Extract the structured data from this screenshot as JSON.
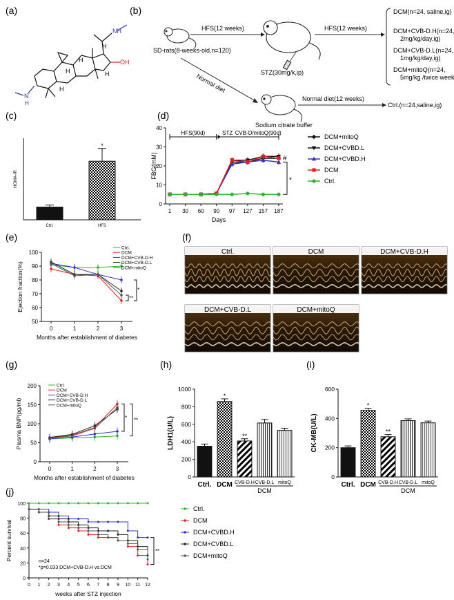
{
  "panel_labels": {
    "a": "(a)",
    "b": "(b)",
    "c": "(c)",
    "d": "(d)",
    "e": "(e)",
    "f": "(f)",
    "g": "(g)",
    "h": "(h)",
    "i": "(i)",
    "j": "(j)"
  },
  "panel_a": {
    "atoms": {
      "nh_top": "NH",
      "oh": "OH",
      "n_left": "N",
      "h_left": "H",
      "h1": "H",
      "h2": "H",
      "h3": "H",
      "h4": "H",
      "h5": "H"
    }
  },
  "panel_b": {
    "rat_label": "SD-rats(8-weeks-old,n=120)",
    "hfs1": "HFS(12 weeks)",
    "stz": "STZ(30mg/k,ip)",
    "hfs2": "HFS(12 weeks)",
    "normal_diet": "Normal diet",
    "normal_diet2": "Normal diet(12 weeks)",
    "citrate": "Sodium citrate buffer",
    "ctrl": "Ctrl.(n=24,saline,ig)",
    "groups": [
      {
        "l1": "DCM(n=24, saline,ig)",
        "l2": ""
      },
      {
        "l1": "DCM+CVB-D.H(n=24,",
        "l2": "2mg/kg/day,ig)"
      },
      {
        "l1": "DCM+CVB-D.L(n=24,",
        "l2": "1mg/kg/day,ig)"
      },
      {
        "l1": "DCM+mitoQ(n=24,",
        "l2": "5mg/kg /twice weekly, ip)"
      }
    ]
  },
  "panel_f": {
    "labels": [
      "Ctrl.",
      "DCM",
      "DCM+CVB-D.H",
      "DCM+CVB-D.L",
      "DCM+mitoQ"
    ]
  },
  "colors": {
    "ctrl": "#2db52d",
    "dcm": "#e02020",
    "cvbh": "#3333cc",
    "cvbl": "#222222",
    "mitoq": "#555555"
  },
  "chart_data": [
    {
      "id": "c",
      "type": "bar",
      "categories": [
        "Ctrl.",
        "HFS"
      ],
      "values": [
        0.25,
        1.15
      ],
      "errors": [
        0.04,
        0.25
      ],
      "ylabel": "HOMA-IR",
      "ylim": [
        0,
        1.6
      ],
      "sig": "*"
    },
    {
      "id": "d",
      "type": "line",
      "xlabel": "Days",
      "ylabel": "FBG(mM)",
      "x": [
        1,
        30,
        60,
        90,
        97,
        127,
        157,
        187
      ],
      "xticks": [
        "1",
        "30",
        "60",
        "90",
        "97",
        "127",
        "157",
        "187"
      ],
      "ylim": [
        0,
        40
      ],
      "yticks": [
        0,
        10,
        20,
        30,
        40
      ],
      "bracket1": "HFS(90d)",
      "bracket2": "STZ",
      "bracket3": "CVB-D/mitoQ(90d)",
      "sig_hash": "#",
      "sig_star": "*",
      "series": [
        {
          "name": "DCM+mitoQ",
          "marker": "diamond",
          "color": "#111111",
          "values": [
            5,
            5,
            5,
            5.5,
            22,
            22,
            24,
            24
          ]
        },
        {
          "name": "DCM+CVBD.L",
          "marker": "tri-down",
          "color": "#111111",
          "values": [
            5,
            5,
            5,
            5.5,
            23,
            23,
            25,
            25
          ]
        },
        {
          "name": "DCM+CVBD.H",
          "marker": "tri-up",
          "color": "#3333cc",
          "values": [
            5,
            5,
            5,
            5.5,
            21,
            22,
            23,
            22
          ]
        },
        {
          "name": "DCM",
          "marker": "square",
          "color": "#e02020",
          "values": [
            5,
            5,
            5,
            5.5,
            23,
            22,
            25,
            24
          ]
        },
        {
          "name": "Ctrl.",
          "marker": "circle",
          "color": "#2db52d",
          "values": [
            5,
            5,
            5,
            5,
            5,
            5.5,
            5,
            5
          ]
        }
      ]
    },
    {
      "id": "e",
      "type": "line",
      "xlabel": "Months after establishment of diabetes",
      "ylabel": "Ejection fraction(%)",
      "x": [
        0,
        1,
        2,
        3
      ],
      "xticks": [
        "0",
        "1",
        "2",
        "3"
      ],
      "ylim": [
        50,
        100
      ],
      "yticks": [
        50,
        60,
        70,
        80,
        90,
        100
      ],
      "sig1": "*",
      "sig2": "**",
      "series": [
        {
          "name": "Ctrl.",
          "color": "#2db52d",
          "values": [
            91,
            89,
            89,
            90
          ]
        },
        {
          "name": "DCM",
          "color": "#e02020",
          "values": [
            88,
            84,
            83,
            65
          ]
        },
        {
          "name": "DCM+CVB-D.H",
          "color": "#3333cc",
          "values": [
            92,
            89,
            84,
            80
          ]
        },
        {
          "name": "DCM+CVB-D.L",
          "color": "#222222",
          "values": [
            93,
            84,
            84,
            72
          ]
        },
        {
          "name": "DCM+mitoQ",
          "color": "#555555",
          "values": [
            92,
            83,
            84,
            69
          ]
        }
      ]
    },
    {
      "id": "g",
      "type": "line",
      "xlabel": "Months after establishment of diabetes",
      "ylabel": "Plasma BNP(pg/ml)",
      "x": [
        0,
        1,
        2,
        3
      ],
      "xticks": [
        "0",
        "1",
        "2",
        "3"
      ],
      "ylim": [
        0,
        200
      ],
      "yticks": [
        0,
        50,
        100,
        150,
        200
      ],
      "sig1": "*",
      "sig2": "**",
      "series": [
        {
          "name": "Ctrl.",
          "color": "#2db52d",
          "values": [
            60,
            63,
            65,
            68
          ]
        },
        {
          "name": "DCM",
          "color": "#e02020",
          "values": [
            63,
            70,
            90,
            152
          ]
        },
        {
          "name": "DCM+CVB-D.H",
          "color": "#3333cc",
          "values": [
            60,
            65,
            73,
            80
          ]
        },
        {
          "name": "DCM+CVB-D.L",
          "color": "#222222",
          "values": [
            64,
            72,
            95,
            138
          ]
        },
        {
          "name": "DCM+mitoQ",
          "color": "#555555",
          "values": [
            62,
            68,
            88,
            143
          ]
        }
      ]
    },
    {
      "id": "h",
      "type": "bar",
      "categories": [
        "Ctrl.",
        "DCM",
        "CVB-D.H",
        "CVB-D.L",
        "mitoQ"
      ],
      "group_label": "DCM",
      "values": [
        350,
        860,
        410,
        615,
        530
      ],
      "errors": [
        25,
        30,
        25,
        40,
        25
      ],
      "ylabel": "LDH1(U/L)",
      "ylim": [
        0,
        1000
      ],
      "yticks": [
        0,
        200,
        400,
        600,
        800,
        1000
      ],
      "sig": [
        "",
        "*",
        "**",
        "",
        ""
      ]
    },
    {
      "id": "i",
      "type": "bar",
      "categories": [
        "Ctrl.",
        "DCM",
        "CVB-D.H",
        "CVB-D.L",
        "mitoQ"
      ],
      "group_label": "DCM",
      "values": [
        200,
        455,
        275,
        385,
        370
      ],
      "errors": [
        12,
        15,
        15,
        12,
        12
      ],
      "ylabel": "CK-MB(U/L)",
      "ylim": [
        0,
        600
      ],
      "yticks": [
        0,
        200,
        400,
        600
      ],
      "sig": [
        "",
        "*",
        "**",
        "",
        ""
      ]
    },
    {
      "id": "j",
      "type": "line",
      "xlabel": "weeks after STZ injection",
      "ylabel": "Percent survival",
      "x": [
        0,
        1,
        2,
        3,
        4,
        5,
        6,
        7,
        8,
        9,
        10,
        11,
        12
      ],
      "xticks": [
        "0",
        "1",
        "2",
        "3",
        "4",
        "5",
        "6",
        "7",
        "8",
        "9",
        "10",
        "11",
        "12"
      ],
      "ylim": [
        0,
        100
      ],
      "yticks": [
        0,
        20,
        40,
        60,
        80,
        100
      ],
      "note1": "n=24",
      "note2": "*p=0.033 DCM+CVB-D.H vs.DCM",
      "sig": "**",
      "series": [
        {
          "name": "Ctrl.",
          "color": "#2db52d",
          "values": [
            100,
            100,
            100,
            100,
            100,
            100,
            100,
            100,
            100,
            100,
            100,
            100,
            100
          ]
        },
        {
          "name": "DCM",
          "color": "#e02020",
          "values": [
            92,
            88,
            79,
            71,
            67,
            63,
            58,
            54,
            54,
            50,
            42,
            30,
            18
          ]
        },
        {
          "name": "DCM+CVBD.H",
          "color": "#3333cc",
          "values": [
            92,
            92,
            88,
            83,
            79,
            79,
            75,
            75,
            75,
            75,
            63,
            54,
            54
          ]
        },
        {
          "name": "DCM+CVBD.L",
          "color": "#222222",
          "values": [
            92,
            88,
            83,
            79,
            75,
            71,
            67,
            63,
            63,
            58,
            50,
            42,
            30
          ]
        },
        {
          "name": "DCM+mitoQ",
          "color": "#555555",
          "values": [
            92,
            88,
            79,
            75,
            71,
            67,
            63,
            58,
            54,
            50,
            46,
            38,
            25
          ]
        }
      ]
    }
  ]
}
